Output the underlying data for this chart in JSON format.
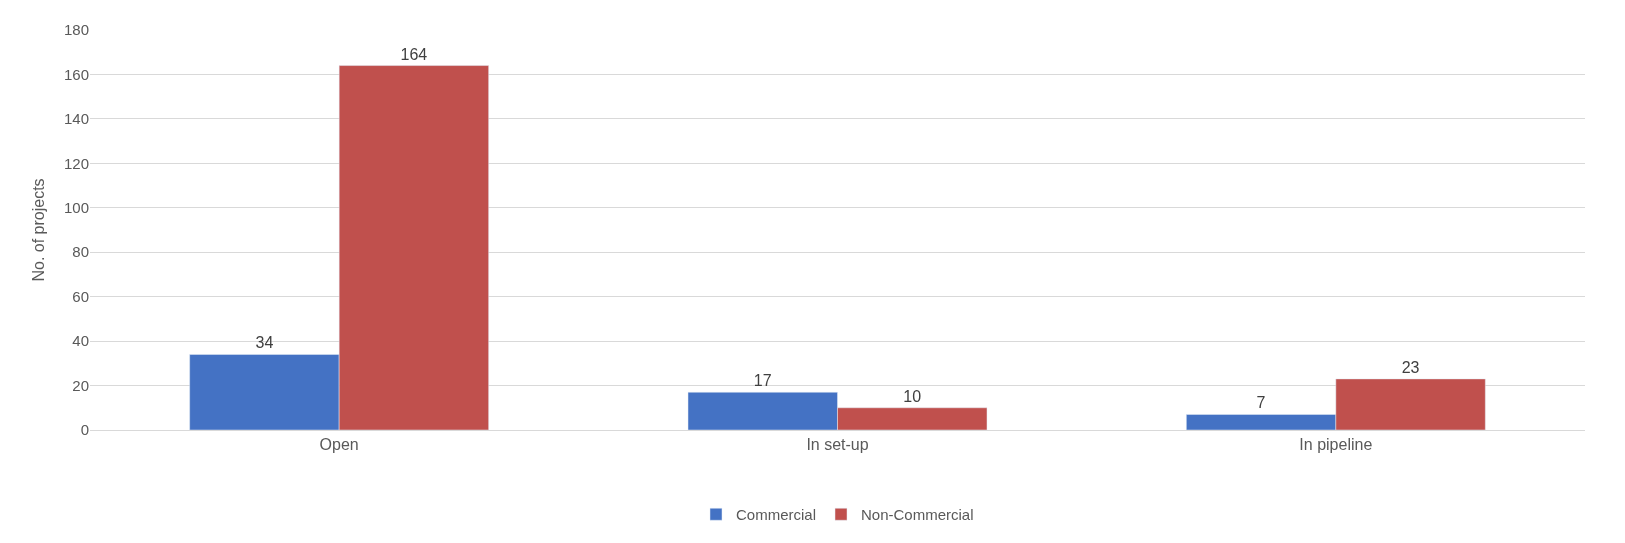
{
  "chart_data": {
    "type": "bar",
    "ylabel": "No. of projects",
    "categories": [
      "Open",
      "In set-up",
      "In pipeline"
    ],
    "series": [
      {
        "name": "Commercial",
        "color": "#4472c4",
        "values": [
          34,
          17,
          7
        ]
      },
      {
        "name": "Non-Commercial",
        "color": "#c0504d",
        "values": [
          164,
          10,
          23
        ]
      }
    ],
    "ylim": [
      0,
      180
    ],
    "yticks": [
      0,
      20,
      40,
      60,
      80,
      100,
      120,
      140,
      160,
      180
    ],
    "grid": "y",
    "legend": "bottom",
    "data_labels": true
  }
}
